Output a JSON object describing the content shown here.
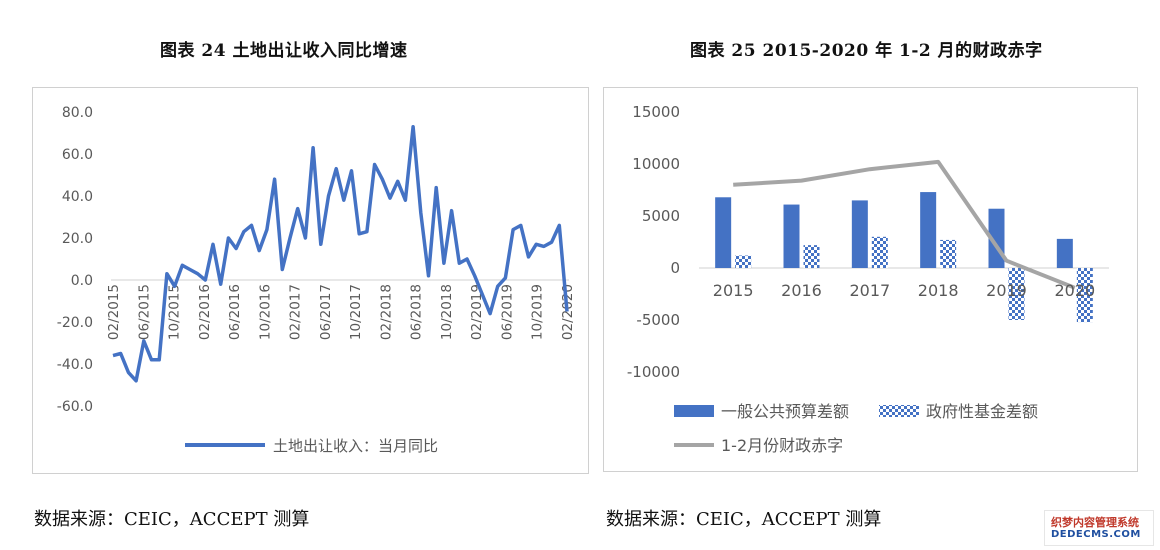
{
  "left": {
    "title": "图表 24 土地出让收入同比增速",
    "source": "数据来源：CEIC，ACCEPT 测算",
    "chart_data": {
      "type": "line",
      "ylim": [
        -60,
        80
      ],
      "yticks": [
        "80.0",
        "60.0",
        "40.0",
        "20.0",
        "0.0",
        "-20.0",
        "-40.0",
        "-60.0"
      ],
      "ytick_values": [
        80,
        60,
        40,
        20,
        0,
        -20,
        -40,
        -60
      ],
      "xtick_labels": [
        "02/2015",
        "06/2015",
        "10/2015",
        "02/2016",
        "06/2016",
        "10/2016",
        "02/2017",
        "06/2017",
        "10/2017",
        "02/2018",
        "06/2018",
        "10/2018",
        "02/2019",
        "06/2019",
        "10/2019",
        "02/2020"
      ],
      "series": [
        {
          "name": "土地出让收入：当月同比",
          "color": "#4472C4",
          "values": [
            -36,
            -35,
            -44,
            -48,
            -29,
            -38,
            -38,
            3,
            -3,
            7,
            5,
            3,
            0,
            17,
            -2,
            20,
            15,
            23,
            26,
            14,
            24,
            48,
            5,
            20,
            34,
            20,
            63,
            17,
            40,
            53,
            38,
            52,
            22,
            23,
            55,
            48,
            39,
            47,
            38,
            73,
            32,
            2,
            44,
            8,
            33,
            8,
            10,
            2,
            -7,
            -16,
            -3,
            1,
            24,
            26,
            11,
            17,
            16,
            18,
            26,
            -15
          ]
        }
      ],
      "legend": "bottom",
      "grid": false
    }
  },
  "right": {
    "title": "图表 25 2015-2020 年 1-2 月的财政赤字",
    "source": "数据来源：CEIC，ACCEPT 测算",
    "chart_data": {
      "type": "bar",
      "categories": [
        "2015",
        "2016",
        "2017",
        "2018",
        "2019",
        "2020"
      ],
      "ylim": [
        -10000,
        15000
      ],
      "yticks": [
        "15000",
        "10000",
        "5000",
        "0",
        "-5000",
        "-10000"
      ],
      "ytick_values": [
        15000,
        10000,
        5000,
        0,
        -5000,
        -10000
      ],
      "series": [
        {
          "name": "一般公共预算差额",
          "kind": "bar",
          "color": "#4472C4",
          "values": [
            6800,
            6100,
            6500,
            7300,
            5700,
            2800
          ]
        },
        {
          "name": "政府性基金差额",
          "kind": "bar",
          "pattern": "checker",
          "color": "#4472C4",
          "values": [
            1200,
            2200,
            3000,
            2700,
            -5000,
            -5200
          ]
        },
        {
          "name": "1-2月份财政赤字",
          "kind": "line",
          "color": "#A5A5A5",
          "values": [
            8000,
            8400,
            9500,
            10200,
            700,
            -1900
          ]
        }
      ],
      "legend": "bottom",
      "grid": false
    }
  },
  "watermark": {
    "line1": "织梦内容管理系统",
    "line2": "DEDECMS.COM"
  }
}
